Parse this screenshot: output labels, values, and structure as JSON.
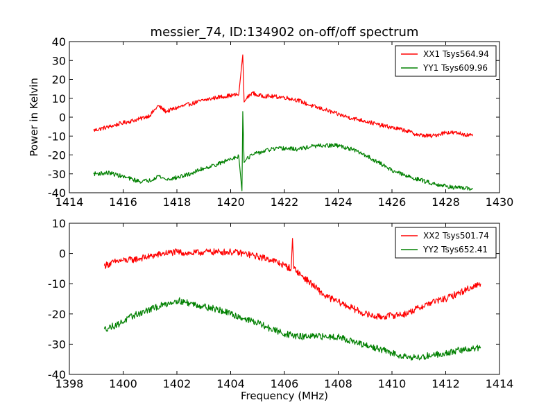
{
  "chart_data": [
    {
      "type": "line",
      "title": "messier_74, ID:134902 on-off/off spectrum",
      "xlabel": "",
      "ylabel": "Power in Kelvin",
      "xlim": [
        1414,
        1430
      ],
      "ylim": [
        -40,
        40
      ],
      "xticks": [
        "1414",
        "1416",
        "1418",
        "1420",
        "1422",
        "1424",
        "1426",
        "1428",
        "1430"
      ],
      "yticks": [
        "40",
        "30",
        "20",
        "10",
        "0",
        "-10",
        "-20",
        "-30",
        "-40"
      ],
      "xtick_values": [
        1414,
        1416,
        1418,
        1420,
        1422,
        1424,
        1426,
        1428,
        1430
      ],
      "ytick_values": [
        40,
        30,
        20,
        10,
        0,
        -10,
        -20,
        -30,
        -40
      ],
      "legend_position": "top-right",
      "series": [
        {
          "name": "XX1 Tsys564.94",
          "color": "#ff0000",
          "x": [
            1414.9,
            1415.5,
            1416.0,
            1416.6,
            1417.0,
            1417.3,
            1417.6,
            1418.0,
            1418.5,
            1419.0,
            1419.5,
            1420.0,
            1420.3,
            1420.45,
            1420.5,
            1420.6,
            1420.8,
            1421.0,
            1421.5,
            1422.0,
            1422.5,
            1423.0,
            1423.5,
            1424.0,
            1424.5,
            1425.0,
            1425.5,
            1426.0,
            1426.5,
            1427.0,
            1427.5,
            1428.0,
            1428.5,
            1429.0
          ],
          "y": [
            -7,
            -5,
            -3,
            -1,
            1,
            6,
            3,
            5,
            7,
            9,
            10.5,
            11.5,
            12,
            33,
            8,
            10,
            13,
            11.5,
            11,
            10.5,
            9,
            6,
            4,
            1.5,
            -0.5,
            -2,
            -4,
            -5.5,
            -7,
            -9.5,
            -10,
            -8,
            -8.5,
            -10
          ]
        },
        {
          "name": "YY1 Tsys609.96",
          "color": "#008000",
          "x": [
            1414.9,
            1415.5,
            1416.0,
            1416.6,
            1417.0,
            1417.3,
            1417.6,
            1418.0,
            1418.5,
            1419.0,
            1419.5,
            1420.0,
            1420.3,
            1420.42,
            1420.45,
            1420.5,
            1420.6,
            1420.8,
            1421.0,
            1421.5,
            1422.0,
            1422.5,
            1423.0,
            1423.5,
            1424.0,
            1424.5,
            1425.0,
            1425.5,
            1426.0,
            1426.5,
            1427.0,
            1427.5,
            1428.0,
            1428.5,
            1429.0
          ],
          "y": [
            -30,
            -29.5,
            -31.5,
            -34,
            -33.5,
            -31,
            -33,
            -32,
            -30,
            -27,
            -25,
            -22,
            -20.5,
            -39,
            3,
            -24,
            -22,
            -20,
            -19,
            -17,
            -16.5,
            -17,
            -15.5,
            -15,
            -15,
            -17,
            -20,
            -24,
            -28,
            -31,
            -33,
            -35,
            -36.5,
            -37.5,
            -38
          ]
        }
      ]
    },
    {
      "type": "line",
      "title": "",
      "xlabel": "Frequency (MHz)",
      "ylabel": "",
      "xlim": [
        1398,
        1414
      ],
      "ylim": [
        -40,
        10
      ],
      "xticks": [
        "1398",
        "1400",
        "1402",
        "1404",
        "1406",
        "1408",
        "1410",
        "1412",
        "1414"
      ],
      "yticks": [
        "10",
        "0",
        "-10",
        "-20",
        "-30",
        "-40"
      ],
      "xtick_values": [
        1398,
        1400,
        1402,
        1404,
        1406,
        1408,
        1410,
        1412,
        1414
      ],
      "ytick_values": [
        10,
        0,
        -10,
        -20,
        -30,
        -40
      ],
      "legend_position": "top-right",
      "series": [
        {
          "name": "XX2 Tsys501.74",
          "color": "#ff0000",
          "x": [
            1399.3,
            1399.8,
            1400.4,
            1401.0,
            1401.5,
            1402.0,
            1402.5,
            1403.0,
            1403.5,
            1404.0,
            1404.5,
            1405.0,
            1405.5,
            1406.0,
            1406.25,
            1406.3,
            1406.35,
            1406.6,
            1407.0,
            1407.5,
            1408.0,
            1408.5,
            1409.0,
            1409.5,
            1410.0,
            1410.5,
            1411.0,
            1411.5,
            1412.0,
            1412.5,
            1413.0,
            1413.3
          ],
          "y": [
            -4,
            -2.5,
            -2,
            -1,
            0,
            0.5,
            0,
            0.5,
            0.5,
            0.5,
            0,
            -1,
            -2,
            -4,
            -5,
            5,
            -5,
            -7,
            -10,
            -14,
            -16,
            -18,
            -20,
            -21,
            -20.5,
            -20,
            -18,
            -16,
            -15,
            -13,
            -11,
            -10
          ]
        },
        {
          "name": "YY2 Tsys652.41",
          "color": "#008000",
          "x": [
            1399.3,
            1399.8,
            1400.4,
            1401.0,
            1401.5,
            1402.0,
            1402.5,
            1403.0,
            1403.5,
            1404.0,
            1404.5,
            1405.0,
            1405.5,
            1406.0,
            1406.5,
            1407.0,
            1407.5,
            1408.0,
            1408.5,
            1409.0,
            1409.5,
            1410.0,
            1410.5,
            1411.0,
            1411.5,
            1412.0,
            1412.5,
            1413.0,
            1413.3
          ],
          "y": [
            -25,
            -23.5,
            -20.5,
            -18.5,
            -17,
            -15.5,
            -16.5,
            -17.5,
            -18.5,
            -20,
            -21.5,
            -23,
            -25,
            -26.5,
            -27.5,
            -27.5,
            -27.5,
            -27.5,
            -29,
            -30.5,
            -31.5,
            -33,
            -34,
            -34.5,
            -33.5,
            -33,
            -32,
            -31.5,
            -31
          ]
        }
      ]
    }
  ]
}
